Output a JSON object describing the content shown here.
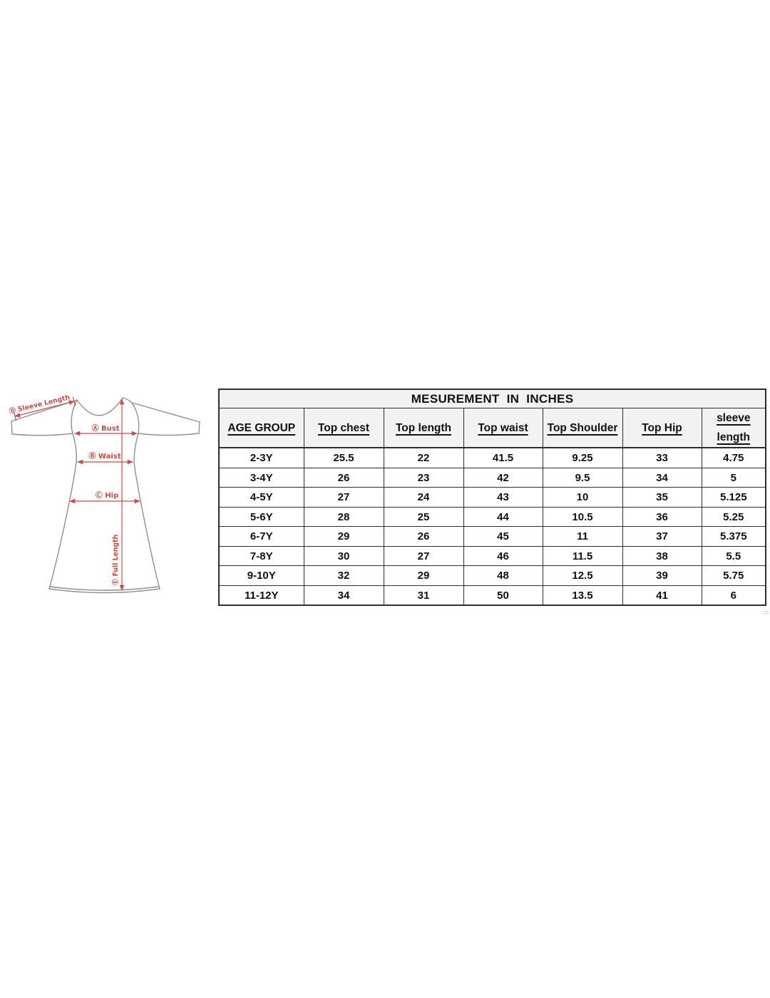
{
  "colors": {
    "annotation_red": "#cd4a44",
    "outline_gray": "#909090",
    "header_bg": "#f2f2f2",
    "border": "#2e2e2e",
    "text": "#111111"
  },
  "illustration": {
    "description": "line drawing of long-sleeve a-line dress with measurement arrows",
    "labels": {
      "sleeve": "Ⓓ Sleeve Length",
      "bust": "Ⓐ Bust",
      "waist": "Ⓑ Waist",
      "hip": "Ⓒ Hip",
      "full_length": "Ⓔ Full Length"
    }
  },
  "table": {
    "title": "MESUREMENT  IN  INCHES",
    "columns": [
      "AGE GROUP",
      "Top chest",
      "Top length",
      "Top waist",
      "Top Shoulder",
      "Top Hip",
      "sleeve length"
    ],
    "rows": [
      [
        "2-3Y",
        "25.5",
        "22",
        "41.5",
        "9.25",
        "33",
        "4.75"
      ],
      [
        "3-4Y",
        "26",
        "23",
        "42",
        "9.5",
        "34",
        "5"
      ],
      [
        "4-5Y",
        "27",
        "24",
        "43",
        "10",
        "35",
        "5.125"
      ],
      [
        "5-6Y",
        "28",
        "25",
        "44",
        "10.5",
        "36",
        "5.25"
      ],
      [
        "6-7Y",
        "29",
        "26",
        "45",
        "11",
        "37",
        "5.375"
      ],
      [
        "7-8Y",
        "30",
        "27",
        "46",
        "11.5",
        "38",
        "5.5"
      ],
      [
        "9-10Y",
        "32",
        "29",
        "48",
        "12.5",
        "39",
        "5.75"
      ],
      [
        "11-12Y",
        "34",
        "31",
        "50",
        "13.5",
        "41",
        "6"
      ]
    ]
  }
}
